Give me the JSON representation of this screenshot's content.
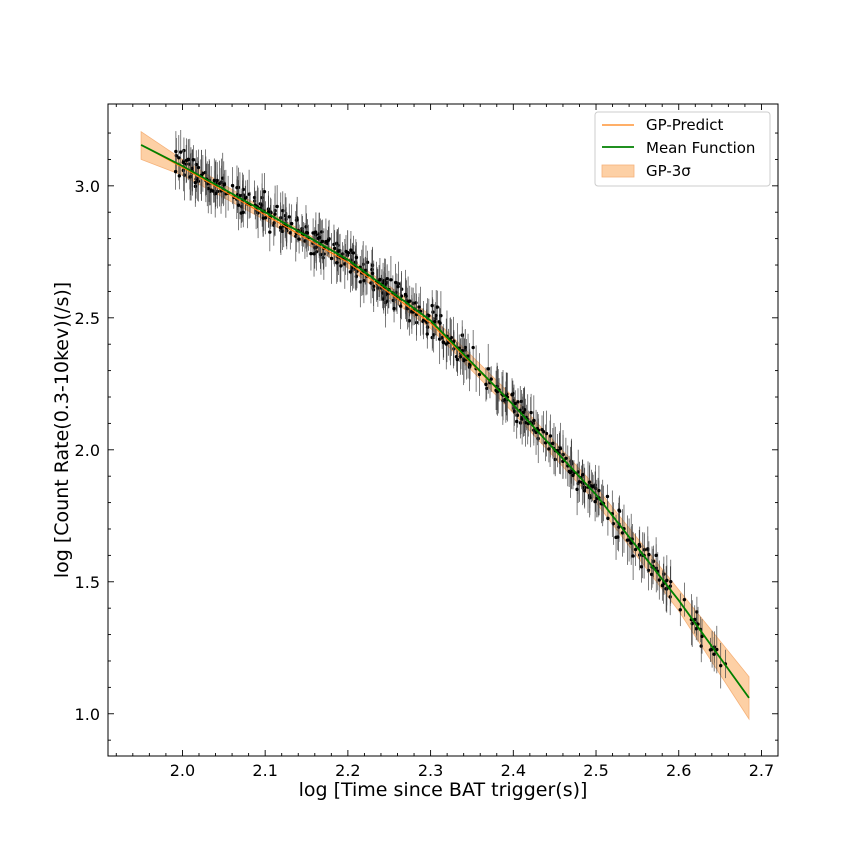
{
  "chart_data": {
    "type": "scatter",
    "title": "",
    "xlabel": "log [Time since BAT trigger(s)]",
    "ylabel": "log [Count Rate(0.3-10kev)(/s)]",
    "xlim": [
      1.91,
      2.72
    ],
    "ylim": [
      0.84,
      3.31
    ],
    "xticks": [
      2.0,
      2.1,
      2.2,
      2.3,
      2.4,
      2.5,
      2.6,
      2.7
    ],
    "xtick_labels": [
      "2.0",
      "2.1",
      "2.2",
      "2.3",
      "2.4",
      "2.5",
      "2.6",
      "2.7"
    ],
    "yticks": [
      1.0,
      1.5,
      2.0,
      2.5,
      3.0
    ],
    "ytick_labels": [
      "1.0",
      "1.5",
      "2.0",
      "2.5",
      "3.0"
    ],
    "legend_position": "top-right",
    "legend": [
      {
        "label": "GP-Predict",
        "kind": "line",
        "color": "#ff7f0e"
      },
      {
        "label": "Mean Function",
        "kind": "line",
        "color": "#008000"
      },
      {
        "label": "GP-3σ",
        "kind": "band",
        "color": "#fdd0a5"
      }
    ],
    "series": [
      {
        "name": "Mean Function",
        "color": "#008000",
        "x": [
          1.95,
          2.0,
          2.1,
          2.2,
          2.3,
          2.4,
          2.5,
          2.6,
          2.685
        ],
        "y": [
          3.155,
          3.075,
          2.9,
          2.72,
          2.49,
          2.17,
          1.83,
          1.43,
          1.06
        ]
      },
      {
        "name": "GP-Predict",
        "color": "#ff7f0e",
        "x": [
          1.95,
          2.0,
          2.1,
          2.2,
          2.3,
          2.4,
          2.5,
          2.6,
          2.685
        ],
        "y": [
          3.155,
          3.07,
          2.89,
          2.71,
          2.48,
          2.17,
          1.83,
          1.43,
          1.06
        ]
      },
      {
        "name": "GP-3σ",
        "color": "#fdd0a5",
        "x": [
          1.95,
          2.0,
          2.1,
          2.2,
          2.3,
          2.4,
          2.5,
          2.6,
          2.685
        ],
        "upper": [
          3.205,
          3.1,
          2.91,
          2.73,
          2.51,
          2.2,
          1.86,
          1.47,
          1.14
        ],
        "lower": [
          3.1,
          3.04,
          2.87,
          2.69,
          2.46,
          2.14,
          1.8,
          1.39,
          0.98
        ]
      }
    ],
    "observations": {
      "name": "Observed data",
      "color": "#000000",
      "x_range": [
        1.99,
        2.665
      ],
      "count": 520,
      "typical_error": 0.07
    }
  }
}
